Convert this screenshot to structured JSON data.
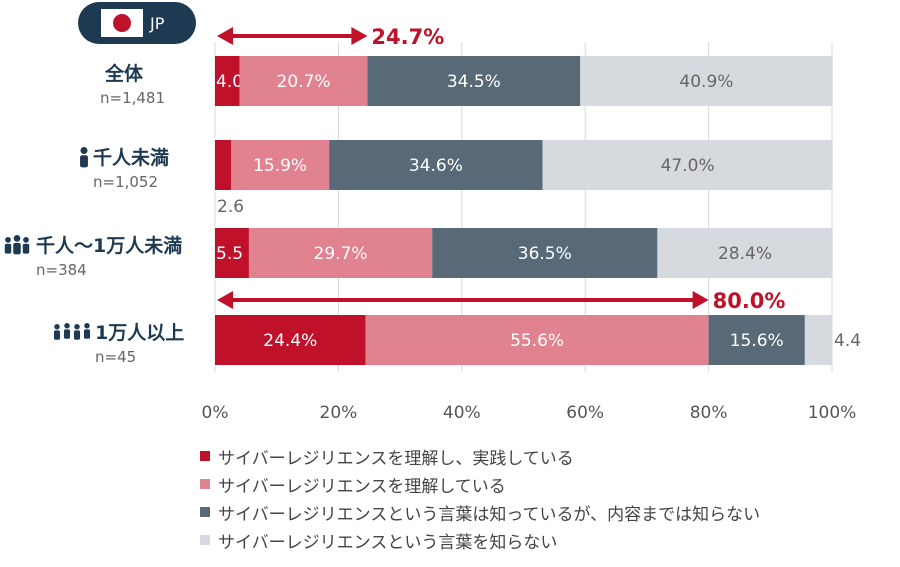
{
  "country": {
    "label": "JP"
  },
  "chart_data": {
    "type": "bar",
    "orientation": "horizontal",
    "stacked": true,
    "categories": [
      {
        "label": "全体",
        "n": "n=1,481",
        "icon": ""
      },
      {
        "label": "千人未満",
        "n": "n=1,052",
        "icon": "person-icon"
      },
      {
        "label": "千人～1万人未満",
        "n": "n=384",
        "icon": "people-icon"
      },
      {
        "label": "1万人以上",
        "n": "n=45",
        "icon": "crowd-icon"
      }
    ],
    "series": [
      {
        "name": "サイバーレジリエンスを理解し、実践している",
        "color": "#c0112b",
        "values": [
          4.0,
          2.6,
          5.5,
          24.4
        ],
        "labels": [
          "4.0",
          "2.6",
          "5.5",
          "24.4%"
        ]
      },
      {
        "name": "サイバーレジリエンスを理解している",
        "color": "#e08290",
        "values": [
          20.7,
          15.9,
          29.7,
          55.6
        ],
        "labels": [
          "20.7%",
          "15.9%",
          "29.7%",
          "55.6%"
        ]
      },
      {
        "name": "サイバーレジリエンスという言葉は知っているが、内容までは知らない",
        "color": "#586a78",
        "values": [
          34.5,
          34.6,
          36.5,
          15.6
        ],
        "labels": [
          "34.5%",
          "34.6%",
          "36.5%",
          "15.6%"
        ]
      },
      {
        "name": "サイバーレジリエンスという言葉を知らない",
        "color": "#d6dadf",
        "values": [
          40.9,
          47.0,
          28.4,
          4.4
        ],
        "labels": [
          "40.9%",
          "47.0%",
          "28.4%",
          "4.4"
        ]
      }
    ],
    "xlim": [
      0,
      100
    ],
    "x_ticks": [
      "0%",
      "20%",
      "40%",
      "60%",
      "80%",
      "100%"
    ],
    "grid": true,
    "annotations": [
      {
        "category_index": 0,
        "value": 24.7,
        "label": "24.7%"
      },
      {
        "category_index": 3,
        "value": 80.0,
        "label": "80.0%"
      }
    ],
    "legend_position": "bottom"
  }
}
